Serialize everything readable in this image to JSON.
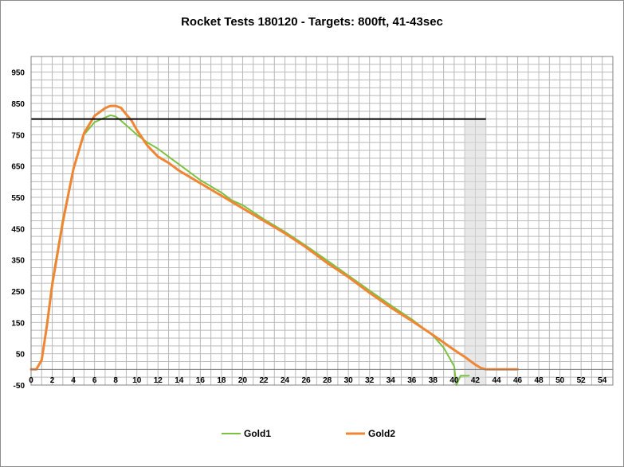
{
  "chart_data": {
    "type": "line",
    "title": "Rocket Tests 180120 - Targets: 800ft, 41-43sec",
    "xlabel": "",
    "ylabel": "",
    "xlim": [
      0,
      55
    ],
    "ylim": [
      -50,
      1000
    ],
    "x_ticks": [
      0,
      2,
      4,
      6,
      8,
      10,
      12,
      14,
      16,
      18,
      20,
      22,
      24,
      26,
      28,
      30,
      32,
      34,
      36,
      38,
      40,
      42,
      44,
      46,
      48,
      50,
      52,
      54
    ],
    "y_ticks": [
      -50,
      50,
      150,
      250,
      350,
      450,
      550,
      650,
      750,
      850,
      950
    ],
    "grid": true,
    "legend_position": "bottom",
    "target_altitude": 800,
    "target_time_window": [
      41,
      43
    ],
    "series": [
      {
        "name": "Gold1",
        "color": "#7dc142",
        "x": [
          0,
          0.5,
          1,
          1.5,
          2,
          3,
          4,
          5,
          6,
          7,
          7.5,
          8,
          8.5,
          9,
          10,
          11,
          12,
          13,
          14,
          15,
          16,
          17,
          18,
          19,
          20,
          22,
          24,
          26,
          28,
          30,
          32,
          34,
          36,
          38,
          39,
          39.5,
          40,
          40.2,
          40.6,
          41.4
        ],
        "y": [
          0,
          0,
          30,
          150,
          280,
          480,
          640,
          750,
          790,
          805,
          812,
          808,
          795,
          780,
          750,
          725,
          705,
          680,
          655,
          630,
          605,
          585,
          565,
          540,
          525,
          480,
          440,
          395,
          348,
          300,
          252,
          205,
          160,
          108,
          70,
          40,
          10,
          -50,
          -20,
          -20
        ]
      },
      {
        "name": "Gold2",
        "color": "#f08533",
        "x": [
          0,
          0.5,
          1,
          1.5,
          2,
          3,
          4,
          5,
          6,
          7,
          7.5,
          8,
          8.5,
          9,
          9.5,
          10,
          11,
          12,
          13,
          14,
          16,
          18,
          20,
          22,
          24,
          26,
          28,
          30,
          32,
          34,
          36,
          38,
          40,
          41,
          42,
          42.5,
          43,
          44,
          45,
          46
        ],
        "y": [
          0,
          0,
          30,
          140,
          270,
          470,
          640,
          755,
          810,
          835,
          842,
          842,
          836,
          815,
          795,
          765,
          715,
          680,
          660,
          635,
          595,
          555,
          515,
          475,
          435,
          390,
          340,
          295,
          245,
          198,
          155,
          110,
          62,
          40,
          15,
          5,
          0,
          0,
          0,
          0
        ]
      }
    ]
  }
}
